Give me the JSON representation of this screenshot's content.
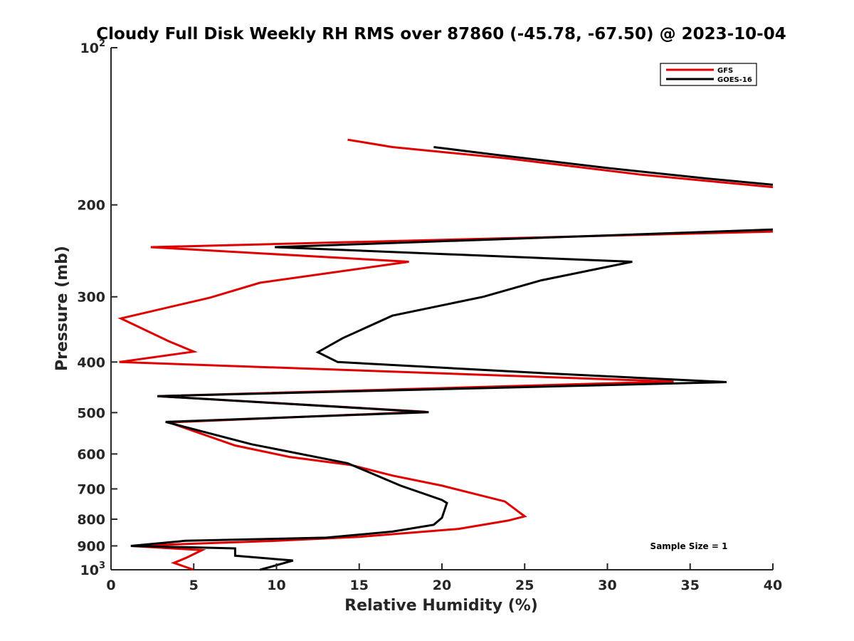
{
  "chart_data": {
    "type": "line",
    "title": "Cloudy Full Disk Weekly RH RMS over 87860 (-45.78, -67.50) @ 2023-10-04",
    "xlabel": "Relative Humidity (%)",
    "ylabel": "Pressure (mb)",
    "xlim": [
      0,
      40
    ],
    "ylim": [
      100,
      1000
    ],
    "y_scale": "log",
    "y_reversed": true,
    "grid": false,
    "legend_position": "top-right",
    "x_ticks": [
      0,
      5,
      10,
      15,
      20,
      25,
      30,
      35,
      40
    ],
    "x_tick_labels": [
      "0",
      "5",
      "10",
      "15",
      "20",
      "25",
      "30",
      "35",
      "40"
    ],
    "y_ticks": [
      100,
      200,
      300,
      400,
      500,
      600,
      700,
      800,
      900,
      1000
    ],
    "y_tick_labels": [
      {
        "base": "10",
        "exp": "2"
      },
      {
        "base": "200"
      },
      {
        "base": "300"
      },
      {
        "base": "400"
      },
      {
        "base": "500"
      },
      {
        "base": "600"
      },
      {
        "base": "700"
      },
      {
        "base": "800"
      },
      {
        "base": "900"
      },
      {
        "base": "10",
        "exp": "3"
      }
    ],
    "annotation": "Sample Size = 1",
    "series": [
      {
        "name": "GFS",
        "color": "#e00000",
        "points": [
          {
            "x": 14.3,
            "p": 150
          },
          {
            "x": 17.0,
            "p": 155
          },
          {
            "x": 24.0,
            "p": 163
          },
          {
            "x": 32.0,
            "p": 175
          },
          {
            "x": 40.0,
            "p": 185
          },
          {
            "x": 40.0,
            "p": 225
          },
          {
            "x": 2.4,
            "p": 241
          },
          {
            "x": 18.0,
            "p": 257
          },
          {
            "x": 9.0,
            "p": 282
          },
          {
            "x": 6.0,
            "p": 301
          },
          {
            "x": 0.6,
            "p": 330
          },
          {
            "x": 3.5,
            "p": 365
          },
          {
            "x": 5.0,
            "p": 382
          },
          {
            "x": 0.5,
            "p": 400
          },
          {
            "x": 34.0,
            "p": 436
          },
          {
            "x": 2.8,
            "p": 465
          },
          {
            "x": 19.0,
            "p": 498
          },
          {
            "x": 3.5,
            "p": 522
          },
          {
            "x": 7.5,
            "p": 578
          },
          {
            "x": 10.8,
            "p": 608
          },
          {
            "x": 14.5,
            "p": 630
          },
          {
            "x": 17.0,
            "p": 660
          },
          {
            "x": 20.0,
            "p": 690
          },
          {
            "x": 23.8,
            "p": 740
          },
          {
            "x": 25.0,
            "p": 790
          },
          {
            "x": 24.0,
            "p": 805
          },
          {
            "x": 21.0,
            "p": 835
          },
          {
            "x": 15.0,
            "p": 865
          },
          {
            "x": 10.0,
            "p": 880
          },
          {
            "x": 1.2,
            "p": 900
          },
          {
            "x": 5.5,
            "p": 917
          },
          {
            "x": 4.5,
            "p": 950
          },
          {
            "x": 3.8,
            "p": 970
          },
          {
            "x": 5.0,
            "p": 1000
          }
        ]
      },
      {
        "name": "GOES-16",
        "color": "#000000",
        "points": [
          {
            "x": 19.5,
            "p": 155
          },
          {
            "x": 23.0,
            "p": 160
          },
          {
            "x": 30.0,
            "p": 170
          },
          {
            "x": 36.0,
            "p": 178
          },
          {
            "x": 40.0,
            "p": 183
          },
          {
            "x": 40.0,
            "p": 223
          },
          {
            "x": 9.9,
            "p": 241
          },
          {
            "x": 31.5,
            "p": 257
          },
          {
            "x": 26.0,
            "p": 279
          },
          {
            "x": 22.5,
            "p": 300
          },
          {
            "x": 17.0,
            "p": 326
          },
          {
            "x": 14.0,
            "p": 360
          },
          {
            "x": 12.5,
            "p": 383
          },
          {
            "x": 13.7,
            "p": 400
          },
          {
            "x": 26.0,
            "p": 420
          },
          {
            "x": 37.2,
            "p": 437
          },
          {
            "x": 2.8,
            "p": 465
          },
          {
            "x": 19.2,
            "p": 499
          },
          {
            "x": 3.3,
            "p": 521
          },
          {
            "x": 8.5,
            "p": 575
          },
          {
            "x": 14.3,
            "p": 625
          },
          {
            "x": 17.5,
            "p": 690
          },
          {
            "x": 20.0,
            "p": 735
          },
          {
            "x": 20.3,
            "p": 745
          },
          {
            "x": 20.0,
            "p": 795
          },
          {
            "x": 19.5,
            "p": 820
          },
          {
            "x": 17.0,
            "p": 845
          },
          {
            "x": 13.0,
            "p": 868
          },
          {
            "x": 4.5,
            "p": 880
          },
          {
            "x": 1.2,
            "p": 900
          },
          {
            "x": 7.5,
            "p": 910
          },
          {
            "x": 7.5,
            "p": 940
          },
          {
            "x": 11.0,
            "p": 960
          },
          {
            "x": 10.0,
            "p": 980
          },
          {
            "x": 9.0,
            "p": 1000
          }
        ]
      }
    ]
  }
}
